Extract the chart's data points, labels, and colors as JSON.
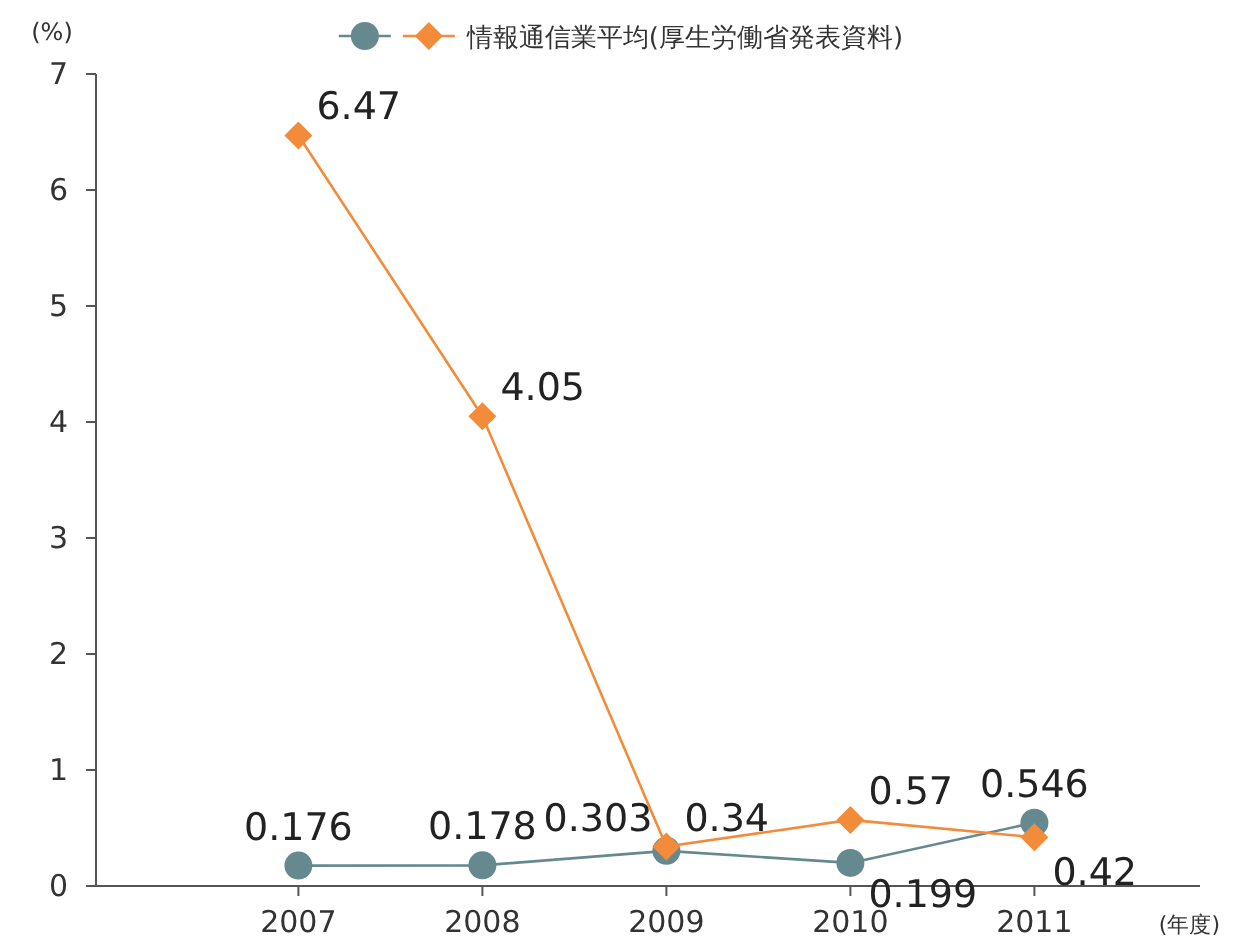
{
  "chart_data": {
    "type": "line",
    "ylabel": "(%)",
    "xlabel": "(年度)",
    "categories": [
      "2007",
      "2008",
      "2009",
      "2010",
      "2011"
    ],
    "series": [
      {
        "color": "#66898f",
        "values": [
          0.176,
          0.178,
          0.303,
          0.199,
          0.546
        ]
      },
      {
        "name": "情報通信業平均(厚生労働省発表資料)",
        "color": "#f28c3a",
        "values": [
          6.47,
          4.05,
          0.34,
          0.57,
          0.42
        ],
        "marker": "diamond"
      }
    ],
    "ylim": [
      0,
      7
    ],
    "yticks": [
      0,
      1,
      2,
      3,
      4,
      5,
      6,
      7
    ],
    "marker": "circle",
    "data_labels": true,
    "legend": "top",
    "grid": false
  }
}
